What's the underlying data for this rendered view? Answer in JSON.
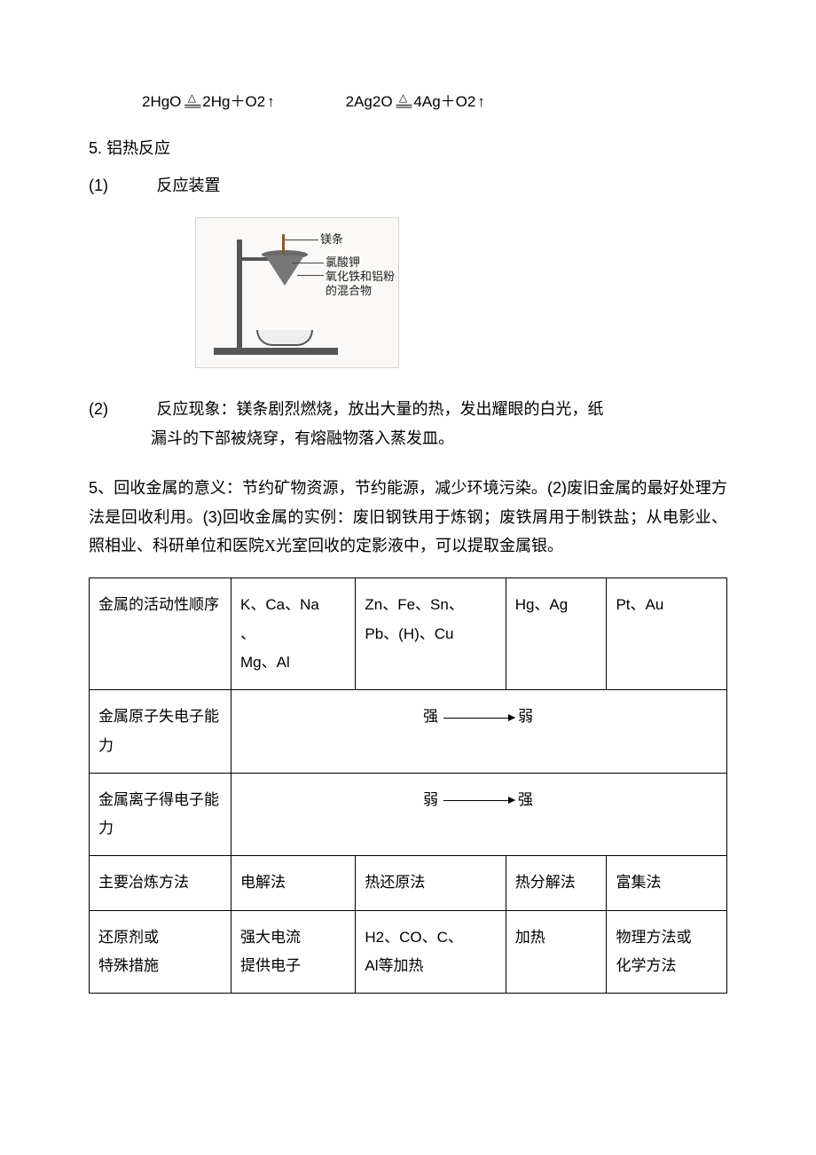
{
  "equations": {
    "eq1_left": "2HgO",
    "eq1_right": "2Hg＋O2",
    "eq2_left": "2Ag2O",
    "eq2_right": "4Ag＋O2",
    "delta": "△",
    "up": "↑"
  },
  "section5": {
    "num": "5.",
    "title": "铝热反应"
  },
  "sub1": {
    "num": "(1)",
    "label": "反应装置"
  },
  "diagram_labels": {
    "mg": "镁条",
    "kclo3": "氯酸钾",
    "mix1": "氧化铁和铝粉",
    "mix2": "的混合物"
  },
  "sub2": {
    "num": "(2)",
    "label_prefix": "反应现象：",
    "text1": "镁条剧烈燃烧，放出大量的热，发出耀眼的白光，纸",
    "text2": "漏斗的下部被烧穿，有熔融物落入蒸发皿。"
  },
  "para5": {
    "num": "5、",
    "t1": "回收金属的意义：节约矿物资源，节约能源，减少环境污染。",
    "p2": "(2)",
    "t2": "废旧金属的最好处理方法是回收利用。",
    "p3": "(3)",
    "t3": "回收金属的实例：废旧钢铁用于炼钢；废铁屑用于制铁盐；从电影业、照相业、科研单位和医院X光室回收的定影液中，可以提取金属银。"
  },
  "table": {
    "r1": {
      "label": "金属的活动性顺序",
      "c1a": "K、Ca、Na",
      "c1b": "、",
      "c1c": "Mg、Al",
      "c2a": "Zn、Fe、Sn、",
      "c2b": "Pb、(H)、Cu",
      "c3": "Hg、Ag",
      "c4": "Pt、Au"
    },
    "r2": {
      "label": "金属原子失电子能力",
      "left": "强",
      "right": "弱"
    },
    "r3": {
      "label": "金属离子得电子能力",
      "left": "弱",
      "right": "强"
    },
    "r4": {
      "label": "主要冶炼方法",
      "c1": "电解法",
      "c2": "热还原法",
      "c3": "热分解法",
      "c4": "富集法"
    },
    "r5": {
      "label1": "还原剂或",
      "label2": "特殊措施",
      "c1a": "强大电流",
      "c1b": "提供电子",
      "c2a": "H2、CO、C、",
      "c2b": "Al等加热",
      "c3": "加热",
      "c4a": "物理方法或",
      "c4b": "化学方法"
    }
  }
}
